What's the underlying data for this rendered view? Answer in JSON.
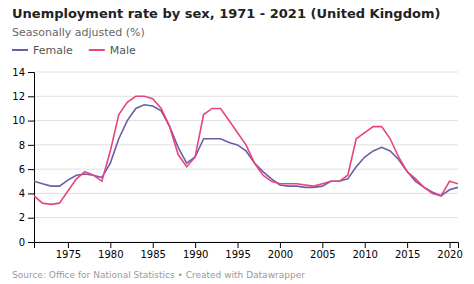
{
  "chart_data": {
    "type": "line",
    "title": "Unemployment rate by sex, 1971 - 2021 (United Kingdom)",
    "subtitle": "Seasonally adjusted (%)",
    "source": "Source: Office for National Statistics • Created with Datawrapper",
    "x": [
      1971,
      1972,
      1973,
      1974,
      1975,
      1976,
      1977,
      1978,
      1979,
      1980,
      1981,
      1982,
      1983,
      1984,
      1985,
      1986,
      1987,
      1988,
      1989,
      1990,
      1991,
      1992,
      1993,
      1994,
      1995,
      1996,
      1997,
      1998,
      1999,
      2000,
      2001,
      2002,
      2003,
      2004,
      2005,
      2006,
      2007,
      2008,
      2009,
      2010,
      2011,
      2012,
      2013,
      2014,
      2015,
      2016,
      2017,
      2018,
      2019,
      2020,
      2021
    ],
    "series": [
      {
        "name": "Female",
        "color": "#6b5ea8",
        "values": [
          5.0,
          4.8,
          4.6,
          4.6,
          5.1,
          5.5,
          5.6,
          5.5,
          5.3,
          6.5,
          8.5,
          10.0,
          11.0,
          11.3,
          11.2,
          10.8,
          9.5,
          7.8,
          6.5,
          7.0,
          8.5,
          8.5,
          8.5,
          8.2,
          8.0,
          7.5,
          6.5,
          5.8,
          5.2,
          4.7,
          4.6,
          4.6,
          4.5,
          4.5,
          4.6,
          5.0,
          5.0,
          5.2,
          6.2,
          7.0,
          7.5,
          7.8,
          7.5,
          6.8,
          5.8,
          5.0,
          4.5,
          4.1,
          3.8,
          4.3,
          4.5
        ]
      },
      {
        "name": "Male",
        "color": "#e8457a",
        "values": [
          3.8,
          3.2,
          3.1,
          3.2,
          4.2,
          5.2,
          5.8,
          5.5,
          5.0,
          7.5,
          10.5,
          11.5,
          12.0,
          12.0,
          11.8,
          11.0,
          9.5,
          7.2,
          6.2,
          7.0,
          10.5,
          11.0,
          11.0,
          10.0,
          9.0,
          8.0,
          6.5,
          5.5,
          5.0,
          4.8,
          4.8,
          4.8,
          4.7,
          4.6,
          4.8,
          5.0,
          5.0,
          5.5,
          8.5,
          9.0,
          9.5,
          9.5,
          8.5,
          7.0,
          5.8,
          5.2,
          4.5,
          4.0,
          3.8,
          5.0,
          4.8
        ]
      }
    ],
    "xlim": [
      1971,
      2021
    ],
    "xticks": [
      1975,
      1980,
      1985,
      1990,
      1995,
      2000,
      2005,
      2010,
      2015,
      2020
    ],
    "ylim": [
      0,
      14
    ],
    "yticks": [
      0,
      2,
      4,
      6,
      8,
      10,
      12,
      14
    ],
    "grid": true,
    "legend": "top"
  }
}
